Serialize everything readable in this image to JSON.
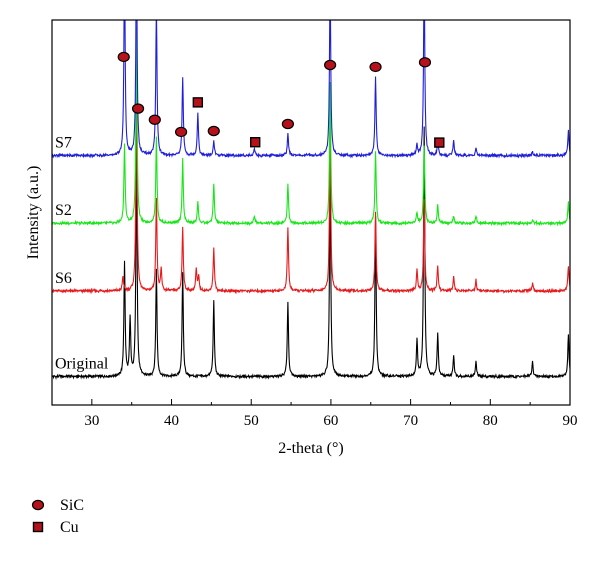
{
  "chart_data": {
    "type": "line",
    "xlabel": "2-theta (°)",
    "ylabel": "Intensity (a.u.)",
    "xlim": [
      25,
      90
    ],
    "x_ticks": [
      30,
      40,
      50,
      60,
      70,
      80,
      90
    ],
    "y_ticks_shown": false,
    "series": [
      {
        "name": "Original",
        "color": "#000000",
        "baseline": 0.0,
        "peaks": [
          [
            34.1,
            0.32
          ],
          [
            34.8,
            0.16
          ],
          [
            35.6,
            0.64
          ],
          [
            38.1,
            0.3
          ],
          [
            41.4,
            0.29
          ],
          [
            45.3,
            0.21
          ],
          [
            54.6,
            0.21
          ],
          [
            59.9,
            0.59
          ],
          [
            65.6,
            0.45
          ],
          [
            70.8,
            0.1
          ],
          [
            71.7,
            0.7
          ],
          [
            73.4,
            0.12
          ],
          [
            75.4,
            0.06
          ],
          [
            78.2,
            0.04
          ],
          [
            85.3,
            0.04
          ],
          [
            89.8,
            0.12
          ]
        ]
      },
      {
        "name": "S6",
        "color": "#e8191b",
        "baseline": 0.24,
        "peaks": [
          [
            33.9,
            0.04
          ],
          [
            35.6,
            0.6
          ],
          [
            38.1,
            0.26
          ],
          [
            38.7,
            0.06
          ],
          [
            41.4,
            0.18
          ],
          [
            43.1,
            0.06
          ],
          [
            43.4,
            0.04
          ],
          [
            45.3,
            0.12
          ],
          [
            54.6,
            0.18
          ],
          [
            59.9,
            0.48
          ],
          [
            65.6,
            0.22
          ],
          [
            70.8,
            0.06
          ],
          [
            71.7,
            0.26
          ],
          [
            73.4,
            0.07
          ],
          [
            75.4,
            0.04
          ],
          [
            78.2,
            0.03
          ],
          [
            85.3,
            0.02
          ],
          [
            89.8,
            0.07
          ]
        ]
      },
      {
        "name": "S2",
        "color": "#19e619",
        "baseline": 0.43,
        "peaks": [
          [
            34.1,
            0.22
          ],
          [
            35.6,
            0.55
          ],
          [
            38.1,
            0.24
          ],
          [
            41.4,
            0.18
          ],
          [
            43.3,
            0.06
          ],
          [
            45.3,
            0.11
          ],
          [
            50.4,
            0.02
          ],
          [
            54.6,
            0.11
          ],
          [
            59.9,
            0.4
          ],
          [
            65.6,
            0.2
          ],
          [
            70.8,
            0.03
          ],
          [
            71.7,
            0.22
          ],
          [
            73.4,
            0.05
          ],
          [
            75.4,
            0.02
          ],
          [
            78.2,
            0.02
          ],
          [
            85.3,
            0.01
          ],
          [
            89.8,
            0.06
          ]
        ]
      },
      {
        "name": "S7",
        "color": "#1f1fd9",
        "baseline": 0.62,
        "peaks": [
          [
            34.1,
            0.55
          ],
          [
            35.6,
            0.6
          ],
          [
            38.1,
            0.42
          ],
          [
            41.4,
            0.22
          ],
          [
            43.3,
            0.12
          ],
          [
            45.3,
            0.04
          ],
          [
            50.4,
            0.02
          ],
          [
            54.6,
            0.06
          ],
          [
            59.9,
            0.5
          ],
          [
            65.6,
            0.22
          ],
          [
            70.8,
            0.03
          ],
          [
            71.7,
            0.52
          ],
          [
            73.4,
            0.04
          ],
          [
            75.4,
            0.04
          ],
          [
            78.2,
            0.02
          ],
          [
            85.3,
            0.01
          ],
          [
            89.8,
            0.07
          ]
        ]
      }
    ],
    "markers": [
      {
        "type": "SiC",
        "x": 34.0
      },
      {
        "type": "SiC",
        "x": 35.8
      },
      {
        "type": "SiC",
        "x": 37.9
      },
      {
        "type": "SiC",
        "x": 41.2
      },
      {
        "type": "Cu",
        "x": 43.3
      },
      {
        "type": "SiC",
        "x": 45.3
      },
      {
        "type": "Cu",
        "x": 50.5
      },
      {
        "type": "SiC",
        "x": 54.6
      },
      {
        "type": "SiC",
        "x": 59.9
      },
      {
        "type": "SiC",
        "x": 65.6
      },
      {
        "type": "SiC",
        "x": 71.8
      },
      {
        "type": "Cu",
        "x": 73.6
      }
    ],
    "legend": [
      {
        "symbol": "circle",
        "label": "SiC"
      },
      {
        "symbol": "square",
        "label": "Cu"
      }
    ],
    "legend_position": "bottom-left",
    "grid": false
  }
}
